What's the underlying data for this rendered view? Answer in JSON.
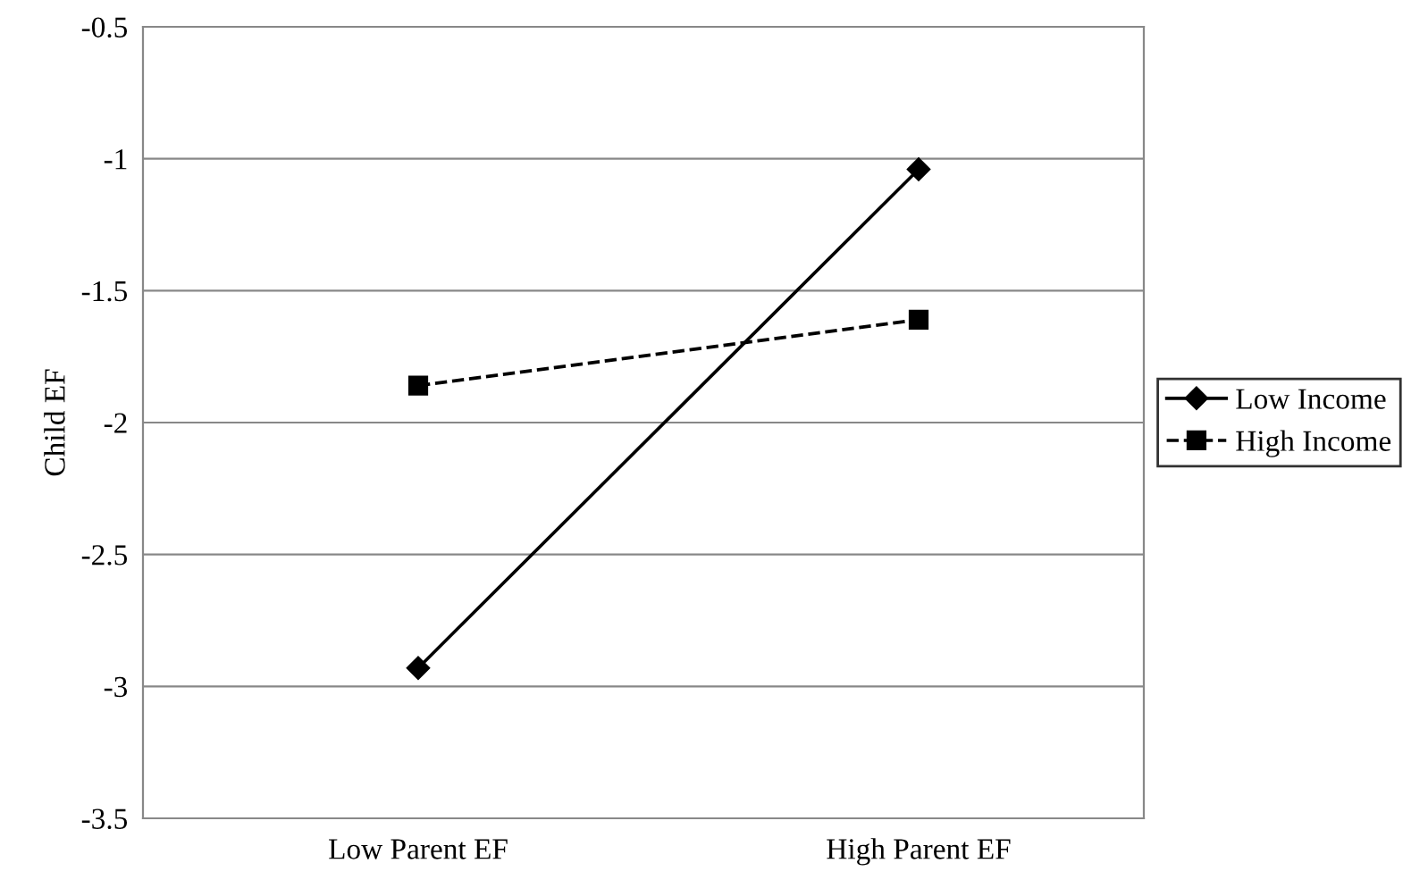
{
  "chart_data": {
    "type": "line",
    "ylabel": "Child EF",
    "categories": [
      "Low Parent EF",
      "High Parent EF"
    ],
    "series": [
      {
        "name": "Low Income",
        "color": "#000000",
        "values": [
          -2.93,
          -1.04
        ],
        "marker": "diamond",
        "line_style": "solid"
      },
      {
        "name": "High Income",
        "color": "#000000",
        "values": [
          -1.86,
          -1.61
        ],
        "marker": "square",
        "line_style": "dashed"
      }
    ],
    "ylim": [
      -3.5,
      -0.5
    ],
    "yticks": [
      -3.5,
      -3,
      -2.5,
      -2,
      -1.5,
      -1,
      -0.5
    ],
    "grid": "y",
    "legend": "right"
  }
}
